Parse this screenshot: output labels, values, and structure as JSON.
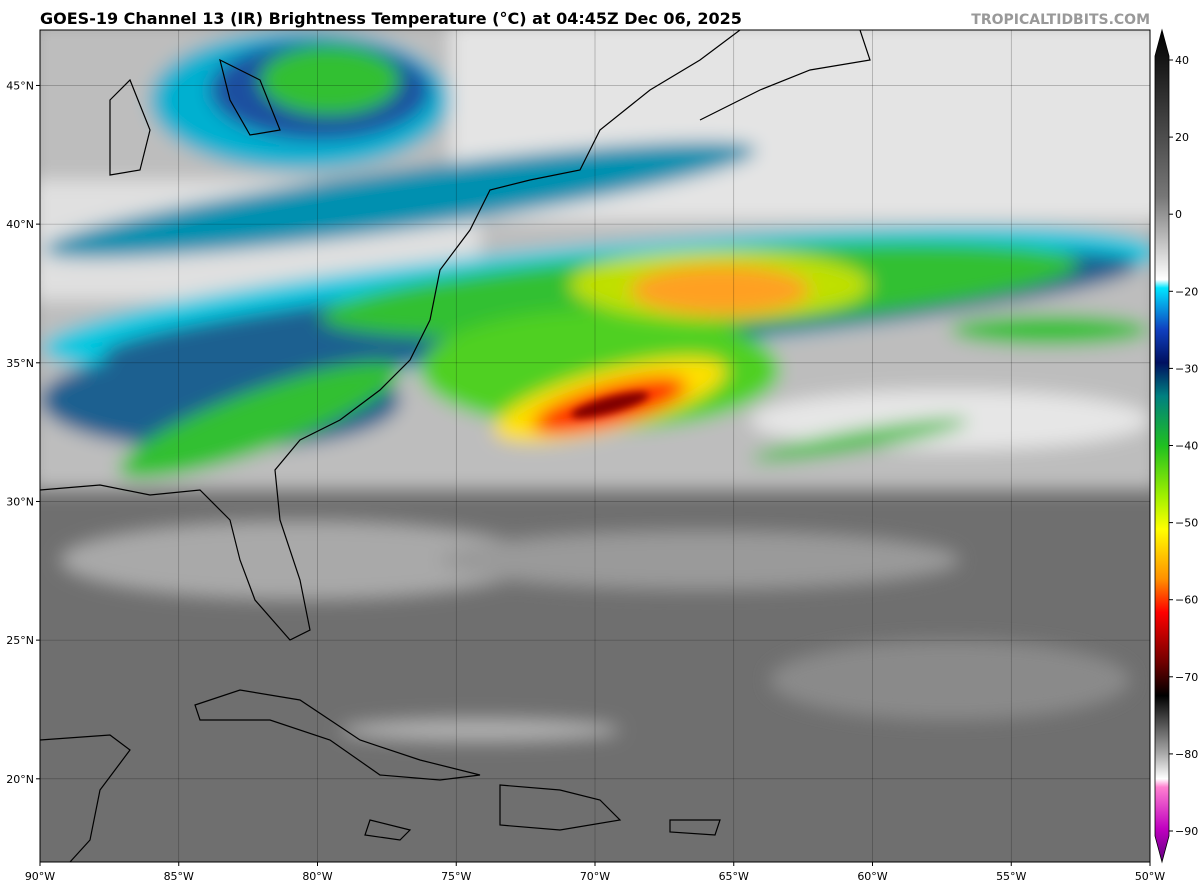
{
  "title": "GOES-19 Channel 13 (IR) Brightness Temperature (°C) at 04:45Z Dec 06, 2025",
  "credit": "TROPICALTIDBITS.COM",
  "map": {
    "lonlim": [
      -90,
      -50
    ],
    "latlim": [
      17,
      47
    ],
    "lon_ticks": [
      {
        "value": -90,
        "label": "90°W"
      },
      {
        "value": -85,
        "label": "85°W"
      },
      {
        "value": -80,
        "label": "80°W"
      },
      {
        "value": -75,
        "label": "75°W"
      },
      {
        "value": -70,
        "label": "70°W"
      },
      {
        "value": -65,
        "label": "65°W"
      },
      {
        "value": -60,
        "label": "60°W"
      },
      {
        "value": -55,
        "label": "55°W"
      },
      {
        "value": -50,
        "label": "50°W"
      }
    ],
    "lat_ticks": [
      {
        "value": 45,
        "label": "45°N"
      },
      {
        "value": 40,
        "label": "40°N"
      },
      {
        "value": 35,
        "label": "35°N"
      },
      {
        "value": 30,
        "label": "30°N"
      },
      {
        "value": 25,
        "label": "25°N"
      },
      {
        "value": 20,
        "label": "20°N"
      }
    ]
  },
  "colorbar": {
    "ticks": [
      40,
      20,
      0,
      {
        "value": -20,
        "label": "−20"
      },
      {
        "value": -30,
        "label": "−30"
      },
      {
        "value": -40,
        "label": "−40"
      },
      {
        "value": -50,
        "label": "−50"
      },
      {
        "value": -60,
        "label": "−60"
      },
      {
        "value": -70,
        "label": "−70"
      },
      {
        "value": -80,
        "label": "−80"
      },
      {
        "value": -90,
        "label": "−90"
      }
    ]
  }
}
